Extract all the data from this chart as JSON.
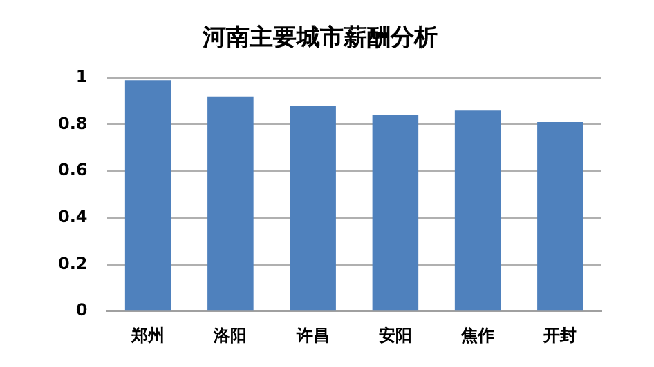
{
  "chart_data": {
    "type": "bar",
    "title": "河南主要城市薪酬分析",
    "categories": [
      "郑州",
      "洛阳",
      "许昌",
      "安阳",
      "焦作",
      "开封"
    ],
    "values": [
      0.99,
      0.92,
      0.88,
      0.84,
      0.86,
      0.81
    ],
    "color": "#4f81bd",
    "ylim": [
      0,
      1
    ],
    "yticks": [
      0,
      0.2,
      0.4,
      0.6,
      0.8,
      1
    ],
    "grid": "y",
    "legend": false
  }
}
